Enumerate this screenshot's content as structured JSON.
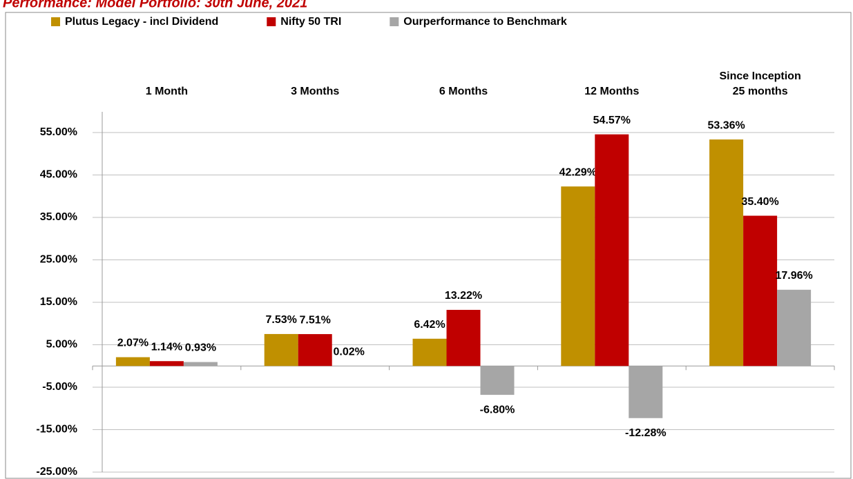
{
  "chart_data": {
    "type": "bar",
    "title": "Performance: Model Portfolio: 30th June, 2021",
    "categories": [
      "1 Month",
      "3 Months",
      "6 Months",
      "12 Months",
      "Since Inception\n25 months"
    ],
    "series": [
      {
        "name": "Plutus Legacy - incl Dividend",
        "color": "#c09000",
        "values": [
          2.07,
          7.53,
          6.42,
          42.29,
          53.36
        ],
        "value_labels": [
          "2.07%",
          "7.53%",
          "6.42%",
          "42.29%",
          "53.36%"
        ]
      },
      {
        "name": "Nifty 50 TRI",
        "color": "#c00000",
        "values": [
          1.14,
          7.51,
          13.22,
          54.57,
          35.4
        ],
        "value_labels": [
          "1.14%",
          "7.51%",
          "13.22%",
          "54.57%",
          "35.40%"
        ]
      },
      {
        "name": "Ourperformance to Benchmark",
        "color": "#a6a6a6",
        "values": [
          0.93,
          0.02,
          -6.8,
          -12.28,
          17.96
        ],
        "value_labels": [
          "0.93%",
          "0.02%",
          "-6.80%",
          "-12.28%",
          "17.96%"
        ]
      }
    ],
    "ylim": [
      -25,
      55
    ],
    "yticks": [
      {
        "value": -25,
        "label": "-25.00%"
      },
      {
        "value": -15,
        "label": "-15.00%"
      },
      {
        "value": -5,
        "label": "-5.00%"
      },
      {
        "value": 5,
        "label": "5.00%"
      },
      {
        "value": 15,
        "label": "15.00%"
      },
      {
        "value": 25,
        "label": "25.00%"
      },
      {
        "value": 35,
        "label": "35.00%"
      },
      {
        "value": 45,
        "label": "45.00%"
      },
      {
        "value": 55,
        "label": "55.00%"
      }
    ],
    "grid": true,
    "legend": "top"
  }
}
